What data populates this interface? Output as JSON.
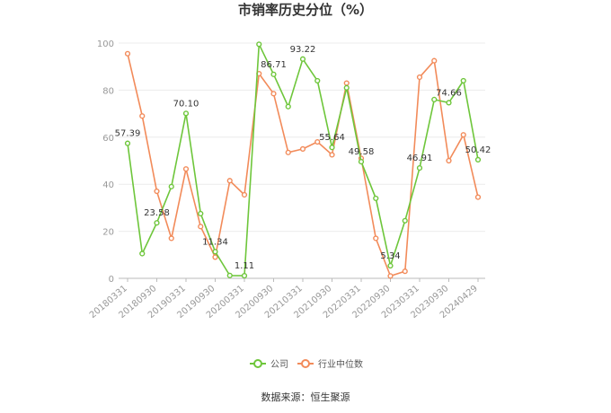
{
  "chart_data": {
    "type": "line",
    "title": "市销率历史分位（%）",
    "ylim": [
      0,
      100
    ],
    "yticks": [
      0,
      20,
      40,
      60,
      80,
      100
    ],
    "x": [
      "20180331",
      "20180630",
      "20180930",
      "20181231",
      "20190331",
      "20190630",
      "20190930",
      "20191231",
      "20200331",
      "20200630",
      "20200930",
      "20201231",
      "20210331",
      "20210630",
      "20210930",
      "20211231",
      "20220331",
      "20220630",
      "20220930",
      "20221231",
      "20230331",
      "20230630",
      "20230930",
      "20231231",
      "20240429"
    ],
    "xtick_labels": [
      "20180331",
      "20180930",
      "20190331",
      "20190930",
      "20200331",
      "20200930",
      "20210331",
      "20210930",
      "20220331",
      "20220930",
      "20230331",
      "20230930",
      "20240429"
    ],
    "xtick_indices": [
      0,
      2,
      4,
      6,
      8,
      10,
      12,
      14,
      16,
      18,
      20,
      22,
      24
    ],
    "series": [
      {
        "name": "公司",
        "color": "#6ec63b",
        "values": [
          57.39,
          10.5,
          23.58,
          39.0,
          70.1,
          27.5,
          11.34,
          1.2,
          1.11,
          99.5,
          86.71,
          73.0,
          93.22,
          84.0,
          55.64,
          81.0,
          49.58,
          34.0,
          5.34,
          24.5,
          46.91,
          76.0,
          74.66,
          84.0,
          50.42
        ]
      },
      {
        "name": "行业中位数",
        "color": "#f28b5a",
        "values": [
          95.5,
          69.0,
          37.0,
          17.0,
          46.5,
          22.0,
          9.0,
          41.5,
          35.5,
          87.0,
          78.5,
          53.5,
          55.0,
          58.0,
          52.5,
          83.0,
          51.0,
          17.0,
          1.0,
          3.0,
          85.5,
          92.5,
          50.0,
          61.0,
          34.5
        ]
      }
    ],
    "data_labels": [
      {
        "index": 0,
        "value": "57.39"
      },
      {
        "index": 2,
        "value": "23.58"
      },
      {
        "index": 4,
        "value": "70.10"
      },
      {
        "index": 6,
        "value": "11.34"
      },
      {
        "index": 8,
        "value": "1.11"
      },
      {
        "index": 10,
        "value": "86.71"
      },
      {
        "index": 12,
        "value": "93.22"
      },
      {
        "index": 14,
        "value": "55.64"
      },
      {
        "index": 16,
        "value": "49.58"
      },
      {
        "index": 18,
        "value": "5.34"
      },
      {
        "index": 20,
        "value": "46.91"
      },
      {
        "index": 22,
        "value": "74.66"
      },
      {
        "index": 24,
        "value": "50.42"
      }
    ],
    "legend_position": "bottom",
    "grid": true
  },
  "footer": {
    "source": "数据来源：恒生聚源"
  }
}
